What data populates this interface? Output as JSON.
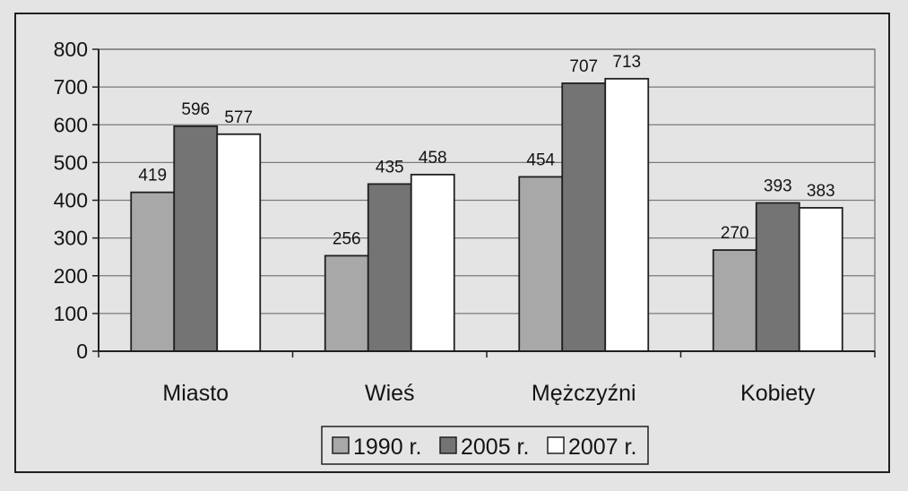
{
  "chart_data": {
    "type": "bar",
    "categories": [
      "Miasto",
      "Wieś",
      "Mężczyźni",
      "Kobiety"
    ],
    "series": [
      {
        "name": "1990 r.",
        "color": "#a8a8a8",
        "values": [
          419,
          256,
          454,
          270
        ]
      },
      {
        "name": "2005 r.",
        "color": "#747474",
        "values": [
          596,
          435,
          707,
          393
        ]
      },
      {
        "name": "2007 r.",
        "color": "#ffffff",
        "values": [
          577,
          458,
          713,
          383
        ]
      }
    ],
    "bar_heights": [
      [
        421,
        253,
        462,
        268
      ],
      [
        596,
        443,
        710,
        393
      ],
      [
        575,
        468,
        722,
        380
      ]
    ],
    "ylim": [
      0,
      800
    ],
    "yticks": [
      0,
      100,
      200,
      300,
      400,
      500,
      600,
      700,
      800
    ],
    "grid": true,
    "legend_position": "bottom"
  }
}
